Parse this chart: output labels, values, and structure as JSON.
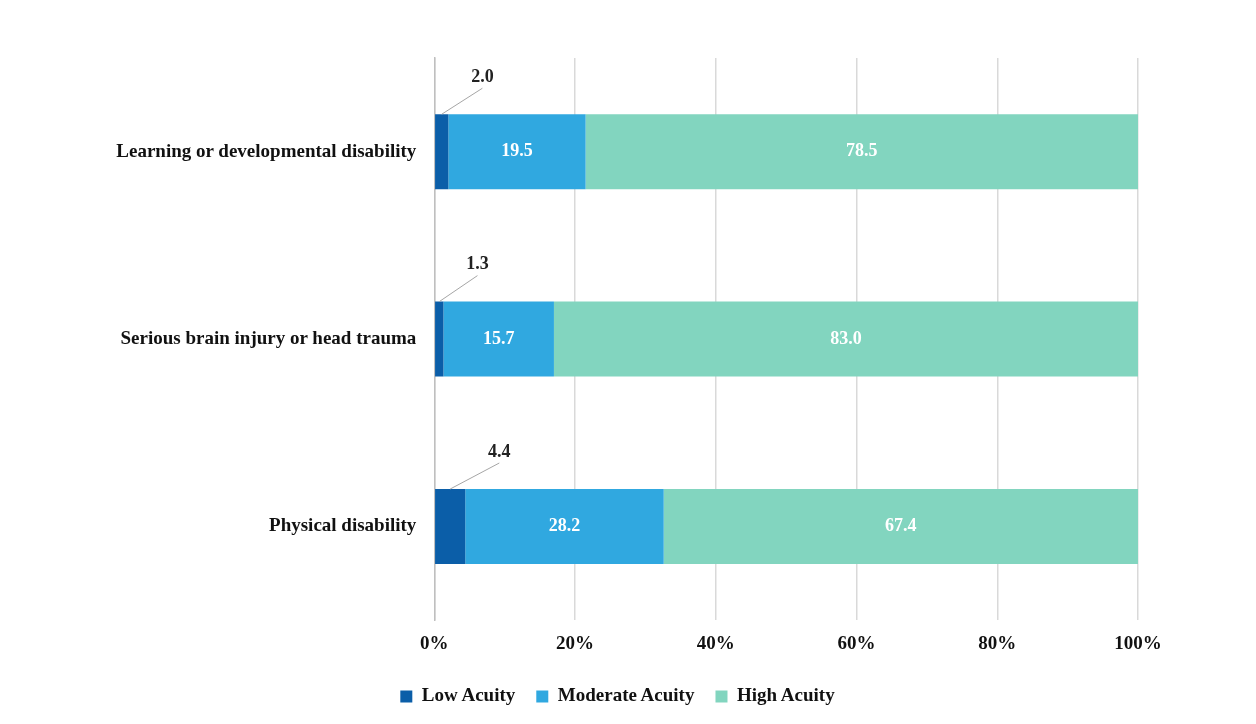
{
  "chart_data": {
    "type": "bar",
    "orientation": "horizontal",
    "stacked": true,
    "categories": [
      "Learning or developmental disability",
      "Serious brain injury or head trauma",
      "Physical disability"
    ],
    "series": [
      {
        "name": "Low Acuity",
        "color": "#0b5ea8",
        "values": [
          2.0,
          1.3,
          4.4
        ],
        "value_labels": [
          "2.0",
          "1.3",
          "4.4"
        ]
      },
      {
        "name": "Moderate Acuity",
        "color": "#30a8e0",
        "values": [
          19.5,
          15.7,
          28.2
        ],
        "value_labels": [
          "19.5",
          "15.7",
          "28.2"
        ]
      },
      {
        "name": "High Acuity",
        "color": "#82d5bf",
        "values": [
          78.5,
          83.0,
          67.4
        ],
        "value_labels": [
          "78.5",
          "83.0",
          "67.4"
        ]
      }
    ],
    "xlim": [
      0,
      100
    ],
    "xticks": [
      {
        "value": 0,
        "label": "0%"
      },
      {
        "value": 20,
        "label": "20%"
      },
      {
        "value": 40,
        "label": "40%"
      },
      {
        "value": 60,
        "label": "60%"
      },
      {
        "value": 80,
        "label": "80%"
      },
      {
        "value": 100,
        "label": "100%"
      }
    ],
    "grid": "x",
    "legend": "bottom"
  }
}
